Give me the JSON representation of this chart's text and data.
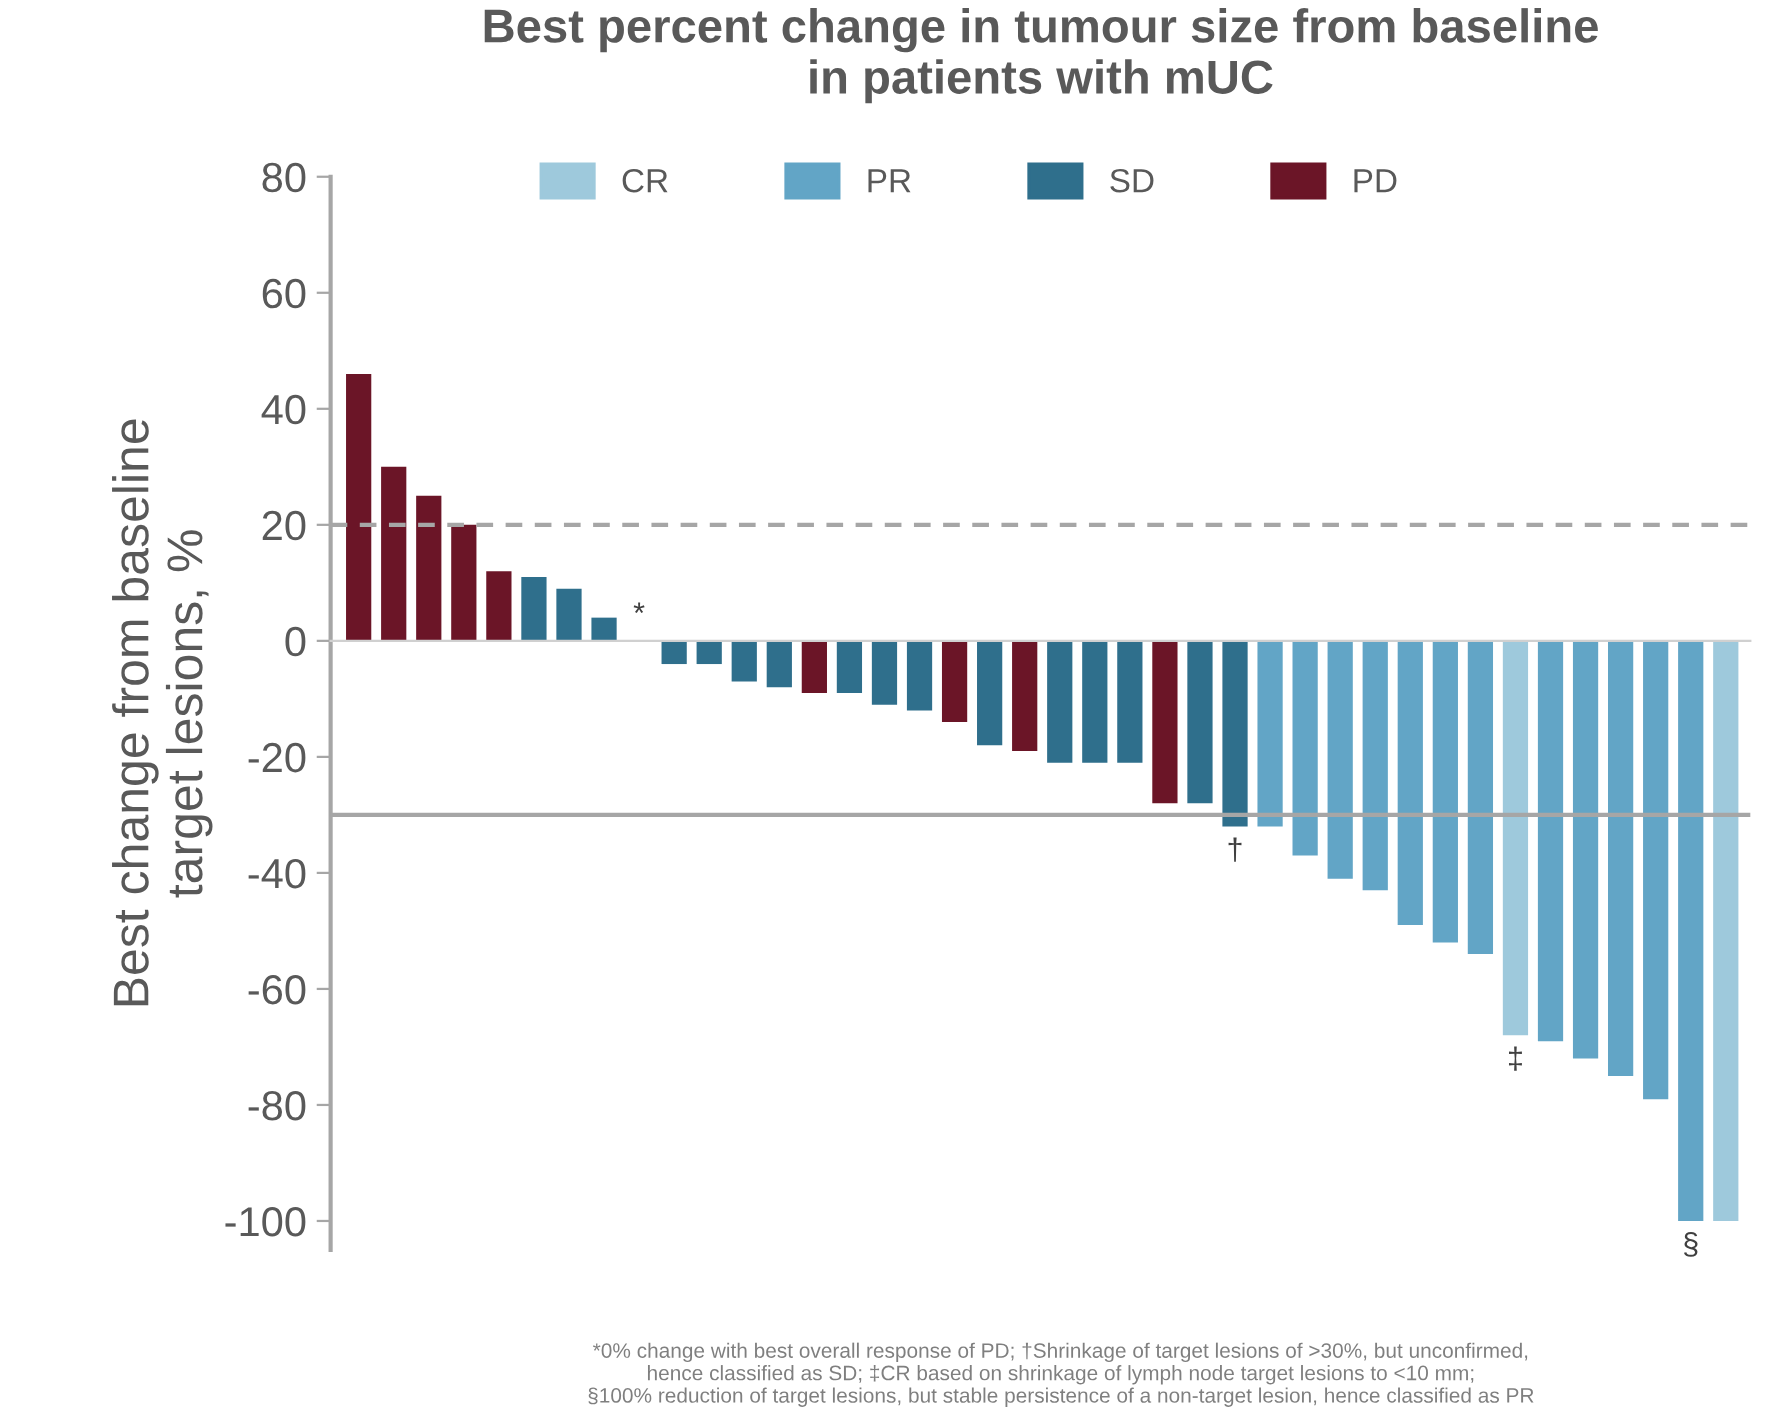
{
  "chart_data": {
    "type": "bar",
    "title": "Best percent change in tumour size from baseline\nin patients with mUC",
    "ylabel": "Best change from baseline\ntarget lesions, %",
    "categories": [
      null,
      null,
      null,
      null,
      null,
      null,
      null,
      null,
      null,
      null,
      null,
      null,
      null,
      null,
      null,
      null,
      null,
      null,
      null,
      null,
      null,
      null,
      null,
      null,
      null,
      null,
      null,
      null,
      null,
      null,
      null,
      null,
      null,
      null,
      null,
      null,
      null,
      null,
      null,
      null
    ],
    "series": [
      {
        "name": "CR",
        "color": "#9ec9dc",
        "values": [
          null,
          null,
          null,
          null,
          null,
          null,
          null,
          null,
          null,
          null,
          null,
          null,
          null,
          null,
          null,
          null,
          null,
          null,
          null,
          null,
          null,
          null,
          null,
          null,
          null,
          null,
          null,
          null,
          null,
          null,
          null,
          null,
          null,
          -68,
          null,
          null,
          null,
          null,
          null,
          -100
        ],
        "value_labels": [
          null,
          null,
          null,
          null,
          null,
          null,
          null,
          null,
          null,
          null,
          null,
          null,
          null,
          null,
          null,
          null,
          null,
          null,
          null,
          null,
          null,
          null,
          null,
          null,
          null,
          null,
          null,
          null,
          null,
          null,
          null,
          null,
          null,
          "‡",
          null,
          null,
          null,
          null,
          null,
          null
        ]
      },
      {
        "name": "PR",
        "color": "#62a5c6",
        "values": [
          null,
          null,
          null,
          null,
          null,
          null,
          null,
          null,
          null,
          null,
          null,
          null,
          null,
          null,
          null,
          null,
          null,
          null,
          null,
          null,
          null,
          null,
          null,
          null,
          null,
          null,
          -32,
          -37,
          -41,
          -43,
          -49,
          -52,
          -54,
          null,
          -69,
          -72,
          -75,
          -79,
          -100,
          null
        ],
        "value_labels": [
          null,
          null,
          null,
          null,
          null,
          null,
          null,
          null,
          null,
          null,
          null,
          null,
          null,
          null,
          null,
          null,
          null,
          null,
          null,
          null,
          null,
          null,
          null,
          null,
          null,
          null,
          null,
          null,
          null,
          null,
          null,
          null,
          null,
          null,
          null,
          null,
          null,
          null,
          "§",
          null
        ]
      },
      {
        "name": "SD",
        "color": "#2f6f8c",
        "values": [
          null,
          null,
          null,
          null,
          null,
          11,
          9,
          4,
          null,
          -4,
          -4,
          -7,
          -8,
          null,
          -9,
          -11,
          -12,
          null,
          -18,
          null,
          -21,
          -21,
          -21,
          null,
          -28,
          -32,
          null,
          null,
          null,
          null,
          null,
          null,
          null,
          null,
          null,
          null,
          null,
          null,
          null,
          null
        ],
        "value_labels": [
          null,
          null,
          null,
          null,
          null,
          null,
          null,
          null,
          null,
          null,
          null,
          null,
          null,
          null,
          null,
          null,
          null,
          null,
          null,
          null,
          null,
          null,
          null,
          null,
          null,
          "†",
          null,
          null,
          null,
          null,
          null,
          null,
          null,
          null,
          null,
          null,
          null,
          null,
          null,
          null
        ]
      },
      {
        "name": "PD",
        "color": "#6b1527",
        "values": [
          46,
          30,
          25,
          20,
          12,
          null,
          null,
          null,
          0,
          null,
          null,
          null,
          null,
          -9,
          null,
          null,
          null,
          -14,
          null,
          -19,
          null,
          null,
          null,
          -28,
          null,
          null,
          null,
          null,
          null,
          null,
          null,
          null,
          null,
          null,
          null,
          null,
          null,
          null,
          null,
          null
        ],
        "value_labels": [
          null,
          null,
          null,
          null,
          null,
          null,
          null,
          null,
          "*",
          null,
          null,
          null,
          null,
          null,
          null,
          null,
          null,
          null,
          null,
          null,
          null,
          null,
          null,
          null,
          null,
          null,
          null,
          null,
          null,
          null,
          null,
          null,
          null,
          null,
          null,
          null,
          null,
          null,
          null,
          null
        ]
      }
    ],
    "ylim": [
      -105,
      80
    ],
    "yticks": [
      -100,
      -80,
      -60,
      -40,
      -20,
      0,
      20,
      40,
      60,
      80
    ],
    "ref_lines": [
      {
        "axis": "y",
        "value": 20,
        "color": "#a6a6a6",
        "line_style": "dashed"
      },
      {
        "axis": "y",
        "value": -30,
        "color": "#a6a6a6",
        "line_style": "solid"
      }
    ],
    "annotations": [
      "*0% change with best overall response of PD; †Shrinkage of target lesions of >30%, but unconfirmed,\nhence classified as SD; ‡CR based on shrinkage of lymph node target lesions to <10 mm;\n§100% reduction of target lesions, but stable persistence of a non-target lesion, hence classified as PR"
    ],
    "legend": "top",
    "grid": false
  }
}
